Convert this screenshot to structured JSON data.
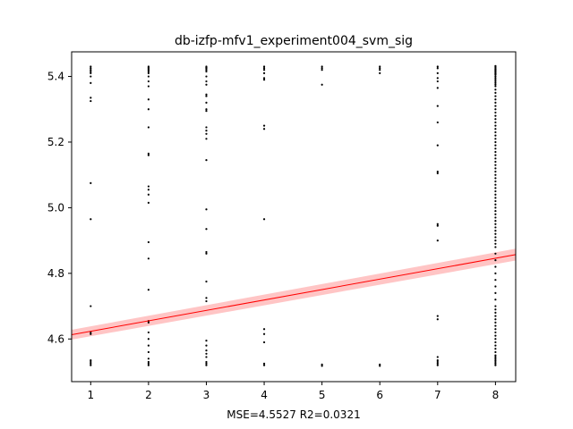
{
  "chart_data": {
    "type": "scatter",
    "title": "db-izfp-mfv1_experiment004_svm_sig",
    "xlabel": "MSE=4.5527 R2=0.0321",
    "ylabel": "",
    "xlim": [
      0.67,
      8.35
    ],
    "ylim": [
      4.47,
      5.475
    ],
    "xticks": [
      1,
      2,
      3,
      4,
      5,
      6,
      7,
      8
    ],
    "yticks": [
      4.6,
      4.8,
      5.0,
      5.2,
      5.4
    ],
    "ytick_labels": [
      "4.6",
      "4.8",
      "5.0",
      "5.2",
      "5.4"
    ],
    "grid": false,
    "legend": "none",
    "colors": {
      "points": "#000000",
      "fit_line": "#ff0000",
      "confidence_band": "#ffb6b6"
    },
    "points": [
      {
        "x": 1,
        "y": [
          5.43,
          5.425,
          5.42,
          5.415,
          5.41,
          5.4,
          5.38,
          5.335,
          5.325,
          5.075,
          4.965,
          4.7,
          4.62,
          4.615,
          4.535,
          4.53,
          4.525,
          4.52
        ]
      },
      {
        "x": 2,
        "y": [
          5.43,
          5.427,
          5.424,
          5.421,
          5.418,
          5.415,
          5.41,
          5.4,
          5.385,
          5.37,
          5.33,
          5.3,
          5.245,
          5.165,
          5.16,
          5.065,
          5.055,
          5.04,
          5.015,
          4.895,
          4.845,
          4.75,
          4.655,
          4.65,
          4.62,
          4.6,
          4.58,
          4.56,
          4.54,
          4.53,
          4.525,
          4.52
        ]
      },
      {
        "x": 3,
        "y": [
          5.43,
          5.427,
          5.424,
          5.42,
          5.415,
          5.4,
          5.385,
          5.375,
          5.345,
          5.34,
          5.32,
          5.3,
          5.295,
          5.245,
          5.235,
          5.225,
          5.21,
          5.145,
          4.995,
          4.935,
          4.865,
          4.86,
          4.775,
          4.725,
          4.715,
          4.595,
          4.58,
          4.565,
          4.555,
          4.545,
          4.53,
          4.525,
          4.52
        ]
      },
      {
        "x": 4,
        "y": [
          5.43,
          5.425,
          5.42,
          5.41,
          5.395,
          5.39,
          5.25,
          5.24,
          4.965,
          4.63,
          4.615,
          4.59,
          4.525,
          4.52
        ]
      },
      {
        "x": 5,
        "y": [
          5.43,
          5.425,
          5.42,
          5.375,
          4.522,
          4.518
        ]
      },
      {
        "x": 6,
        "y": [
          5.43,
          5.425,
          5.42,
          5.41,
          4.522,
          4.518
        ]
      },
      {
        "x": 7,
        "y": [
          5.43,
          5.425,
          5.41,
          5.395,
          5.385,
          5.365,
          5.31,
          5.26,
          5.19,
          5.11,
          5.105,
          4.95,
          4.945,
          4.9,
          4.67,
          4.66,
          4.545,
          4.535,
          4.53,
          4.525,
          4.52
        ]
      },
      {
        "x": 8,
        "y": [
          5.432,
          5.429,
          5.426,
          5.423,
          5.42,
          5.417,
          5.414,
          5.411,
          5.408,
          5.405,
          5.4,
          5.395,
          5.39,
          5.385,
          5.38,
          5.375,
          5.37,
          5.36,
          5.35,
          5.34,
          5.33,
          5.32,
          5.31,
          5.3,
          5.29,
          5.28,
          5.27,
          5.26,
          5.25,
          5.24,
          5.23,
          5.22,
          5.21,
          5.2,
          5.19,
          5.18,
          5.17,
          5.16,
          5.15,
          5.14,
          5.13,
          5.12,
          5.11,
          5.1,
          5.09,
          5.08,
          5.07,
          5.06,
          5.05,
          5.04,
          5.03,
          5.02,
          5.01,
          5.0,
          4.99,
          4.98,
          4.97,
          4.96,
          4.95,
          4.94,
          4.93,
          4.92,
          4.91,
          4.9,
          4.89,
          4.88,
          4.86,
          4.84,
          4.82,
          4.8,
          4.78,
          4.76,
          4.74,
          4.72,
          4.7,
          4.69,
          4.68,
          4.67,
          4.66,
          4.65,
          4.64,
          4.63,
          4.62,
          4.61,
          4.6,
          4.59,
          4.58,
          4.57,
          4.56,
          4.55,
          4.545,
          4.54,
          4.535,
          4.53,
          4.525,
          4.52
        ]
      }
    ],
    "fit_line": {
      "x": [
        0.67,
        8.35
      ],
      "y": [
        4.613,
        4.857
      ],
      "band_halfwidth_y": [
        0.015,
        0.018
      ]
    }
  }
}
